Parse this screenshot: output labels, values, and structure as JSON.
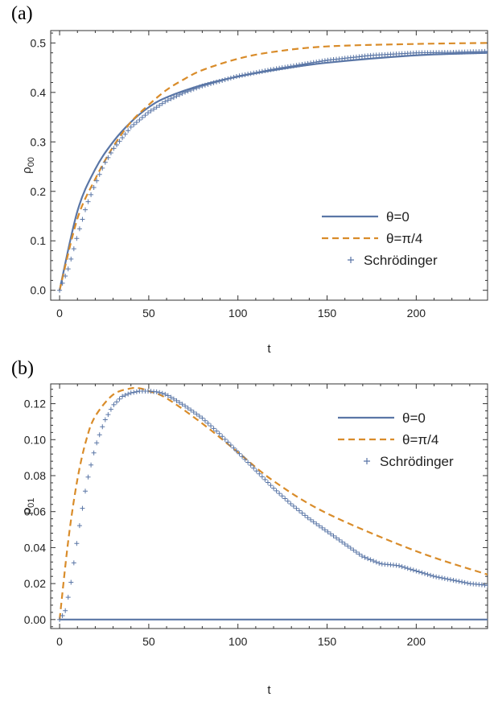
{
  "colors": {
    "theta0": "#5a76a6",
    "thetaPi4": "#d98c2a",
    "schrodinger": "#5a76a6",
    "axis": "#333333"
  },
  "chart_data": [
    {
      "type": "line",
      "panel_label": "(a)",
      "xlabel": "t",
      "ylabel": "ρ",
      "ylabel_sub": "00",
      "xlim": [
        -5,
        240
      ],
      "ylim": [
        -0.02,
        0.525
      ],
      "xticks": [
        0,
        50,
        100,
        150,
        200
      ],
      "xtick_labels": [
        "0",
        "50",
        "100",
        "150",
        "200"
      ],
      "yticks": [
        0.0,
        0.1,
        0.2,
        0.3,
        0.4,
        0.5
      ],
      "ytick_labels": [
        "0.0",
        "0.1",
        "0.2",
        "0.3",
        "0.4",
        "0.5"
      ],
      "legend_position": "lower-right",
      "series": [
        {
          "name": "θ=0",
          "style": "solid",
          "x": [
            0,
            10,
            20,
            30,
            40,
            50,
            60,
            80,
            100,
            120,
            150,
            200,
            240
          ],
          "y": [
            0.0,
            0.16,
            0.245,
            0.3,
            0.34,
            0.37,
            0.39,
            0.415,
            0.432,
            0.445,
            0.46,
            0.475,
            0.48
          ]
        },
        {
          "name": "θ=π/4",
          "style": "dashed",
          "x": [
            0,
            10,
            20,
            30,
            40,
            50,
            60,
            70,
            80,
            100,
            120,
            150,
            200,
            240
          ],
          "y": [
            0.0,
            0.145,
            0.225,
            0.29,
            0.34,
            0.375,
            0.405,
            0.427,
            0.445,
            0.468,
            0.482,
            0.493,
            0.498,
            0.5
          ]
        },
        {
          "name": "Schrödinger",
          "style": "markers",
          "x": [
            0,
            5,
            10,
            15,
            20,
            25,
            30,
            40,
            50,
            60,
            70,
            80,
            100,
            120,
            150,
            175,
            200,
            220,
            240
          ],
          "y": [
            0.0,
            0.045,
            0.11,
            0.17,
            0.215,
            0.255,
            0.285,
            0.33,
            0.36,
            0.383,
            0.4,
            0.413,
            0.433,
            0.447,
            0.465,
            0.475,
            0.48,
            0.481,
            0.483
          ]
        }
      ]
    },
    {
      "type": "line",
      "panel_label": "(b)",
      "xlabel": "t",
      "ylabel": "ρ",
      "ylabel_sub": "01",
      "xlim": [
        -5,
        240
      ],
      "ylim": [
        -0.005,
        0.131
      ],
      "xticks": [
        0,
        50,
        100,
        150,
        200
      ],
      "xtick_labels": [
        "0",
        "50",
        "100",
        "150",
        "200"
      ],
      "yticks": [
        0.0,
        0.02,
        0.04,
        0.06,
        0.08,
        0.1,
        0.12
      ],
      "ytick_labels": [
        "0.00",
        "0.02",
        "0.04",
        "0.06",
        "0.08",
        "0.10",
        "0.12"
      ],
      "legend_position": "top-right",
      "series": [
        {
          "name": "θ=0",
          "style": "solid",
          "x": [
            0,
            240
          ],
          "y": [
            0.0,
            0.0
          ]
        },
        {
          "name": "θ=π/4",
          "style": "dashed",
          "x": [
            0,
            5,
            10,
            15,
            20,
            30,
            40,
            45,
            50,
            60,
            80,
            100,
            120,
            150,
            200,
            240
          ],
          "y": [
            0.0,
            0.045,
            0.078,
            0.1,
            0.113,
            0.125,
            0.1285,
            0.1285,
            0.127,
            0.123,
            0.109,
            0.093,
            0.077,
            0.059,
            0.038,
            0.025
          ]
        },
        {
          "name": "Schrödinger",
          "style": "markers",
          "x": [
            0,
            3,
            6,
            10,
            15,
            20,
            25,
            30,
            35,
            40,
            45,
            50,
            55,
            60,
            70,
            80,
            90,
            100,
            110,
            120,
            130,
            140,
            150,
            160,
            170,
            180,
            190,
            200,
            210,
            220,
            230,
            240
          ],
          "y": [
            0.0,
            0.004,
            0.018,
            0.045,
            0.075,
            0.096,
            0.11,
            0.119,
            0.124,
            0.126,
            0.127,
            0.127,
            0.1265,
            0.125,
            0.119,
            0.112,
            0.103,
            0.093,
            0.083,
            0.073,
            0.064,
            0.056,
            0.049,
            0.042,
            0.035,
            0.031,
            0.03,
            0.027,
            0.024,
            0.022,
            0.02,
            0.019
          ]
        }
      ]
    }
  ]
}
